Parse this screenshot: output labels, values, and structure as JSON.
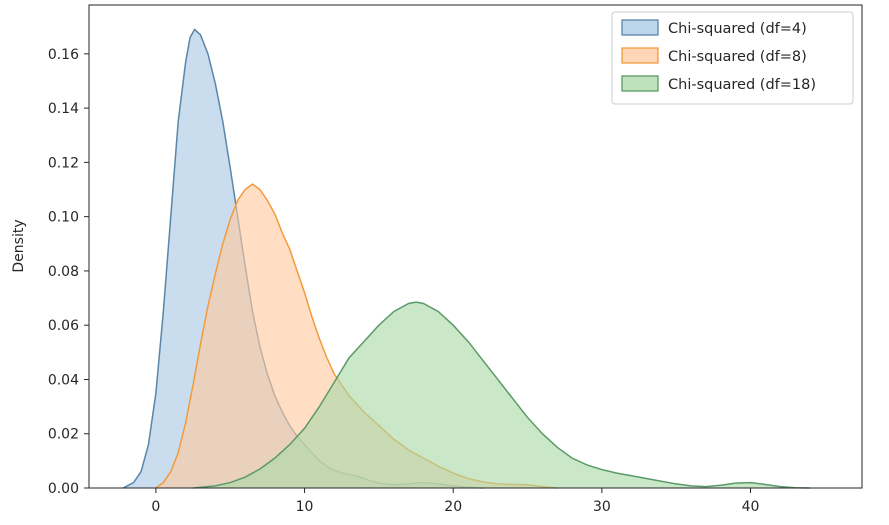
{
  "chart_data": {
    "type": "area",
    "title": "",
    "xlabel": "",
    "ylabel": "Density",
    "xlim": [
      -4.5,
      47.5
    ],
    "ylim": [
      0,
      0.178
    ],
    "x_ticks": [
      0,
      10,
      20,
      30,
      40
    ],
    "y_ticks": [
      0.0,
      0.02,
      0.04,
      0.06,
      0.08,
      0.1,
      0.12,
      0.14,
      0.16
    ],
    "grid": false,
    "legend_position": "top-right",
    "series": [
      {
        "name": "Chi-squared (df=4)",
        "fill": "#a8c8e4",
        "edge": "#5a86a8",
        "points": [
          [
            -2.2,
            0
          ],
          [
            -1.5,
            0.002
          ],
          [
            -1,
            0.006
          ],
          [
            -0.5,
            0.016
          ],
          [
            0,
            0.035
          ],
          [
            0.5,
            0.065
          ],
          [
            1,
            0.1
          ],
          [
            1.5,
            0.135
          ],
          [
            2,
            0.157
          ],
          [
            2.3,
            0.166
          ],
          [
            2.6,
            0.169
          ],
          [
            3,
            0.167
          ],
          [
            3.5,
            0.16
          ],
          [
            4,
            0.149
          ],
          [
            4.5,
            0.135
          ],
          [
            5,
            0.118
          ],
          [
            5.5,
            0.1
          ],
          [
            6,
            0.082
          ],
          [
            6.5,
            0.065
          ],
          [
            7,
            0.052
          ],
          [
            7.5,
            0.042
          ],
          [
            8,
            0.034
          ],
          [
            8.5,
            0.028
          ],
          [
            9,
            0.023
          ],
          [
            9.5,
            0.019
          ],
          [
            10,
            0.016
          ],
          [
            10.5,
            0.013
          ],
          [
            11,
            0.01
          ],
          [
            11.5,
            0.008
          ],
          [
            12,
            0.0065
          ],
          [
            12.5,
            0.0055
          ],
          [
            13,
            0.005
          ],
          [
            13.5,
            0.0045
          ],
          [
            14,
            0.0035
          ],
          [
            14.5,
            0.0025
          ],
          [
            15,
            0.0018
          ],
          [
            16,
            0.0012
          ],
          [
            17,
            0.0015
          ],
          [
            18,
            0.002
          ],
          [
            19,
            0.0015
          ],
          [
            20,
            0.0008
          ],
          [
            21,
            0.0003
          ],
          [
            22,
            0
          ]
        ]
      },
      {
        "name": "Chi-squared (df=8)",
        "fill": "#ffc9a0",
        "edge": "#f59a3c",
        "points": [
          [
            0,
            0
          ],
          [
            0.5,
            0.002
          ],
          [
            1,
            0.006
          ],
          [
            1.5,
            0.013
          ],
          [
            2,
            0.024
          ],
          [
            2.5,
            0.038
          ],
          [
            3,
            0.053
          ],
          [
            3.5,
            0.067
          ],
          [
            4,
            0.079
          ],
          [
            4.5,
            0.09
          ],
          [
            5,
            0.099
          ],
          [
            5.5,
            0.106
          ],
          [
            6,
            0.11
          ],
          [
            6.5,
            0.112
          ],
          [
            7,
            0.11
          ],
          [
            7.5,
            0.106
          ],
          [
            8,
            0.101
          ],
          [
            8.5,
            0.094
          ],
          [
            9,
            0.088
          ],
          [
            9.5,
            0.08
          ],
          [
            10,
            0.072
          ],
          [
            10.5,
            0.063
          ],
          [
            11,
            0.055
          ],
          [
            11.5,
            0.048
          ],
          [
            12,
            0.042
          ],
          [
            12.5,
            0.038
          ],
          [
            13,
            0.034
          ],
          [
            14,
            0.028
          ],
          [
            15,
            0.023
          ],
          [
            16,
            0.018
          ],
          [
            17,
            0.014
          ],
          [
            18,
            0.011
          ],
          [
            19,
            0.008
          ],
          [
            20,
            0.0055
          ],
          [
            21,
            0.0035
          ],
          [
            22,
            0.0022
          ],
          [
            23,
            0.0015
          ],
          [
            24,
            0.0013
          ],
          [
            25,
            0.0012
          ],
          [
            26,
            0.0005
          ],
          [
            27,
            0
          ]
        ]
      },
      {
        "name": "Chi-squared (df=18)",
        "fill": "#a9d8a6",
        "edge": "#5a9a6a",
        "points": [
          [
            2.5,
            0
          ],
          [
            4,
            0.0008
          ],
          [
            5,
            0.002
          ],
          [
            6,
            0.004
          ],
          [
            7,
            0.007
          ],
          [
            8,
            0.011
          ],
          [
            9,
            0.016
          ],
          [
            10,
            0.022
          ],
          [
            11,
            0.03
          ],
          [
            12,
            0.039
          ],
          [
            13,
            0.048
          ],
          [
            14,
            0.054
          ],
          [
            15,
            0.06
          ],
          [
            16,
            0.065
          ],
          [
            17,
            0.068
          ],
          [
            17.5,
            0.0685
          ],
          [
            18,
            0.068
          ],
          [
            19,
            0.065
          ],
          [
            20,
            0.06
          ],
          [
            21,
            0.054
          ],
          [
            22,
            0.047
          ],
          [
            23,
            0.04
          ],
          [
            24,
            0.033
          ],
          [
            25,
            0.026
          ],
          [
            26,
            0.02
          ],
          [
            27,
            0.015
          ],
          [
            28,
            0.011
          ],
          [
            29,
            0.0085
          ],
          [
            30,
            0.0068
          ],
          [
            31,
            0.0055
          ],
          [
            32,
            0.0045
          ],
          [
            33,
            0.0035
          ],
          [
            34,
            0.0025
          ],
          [
            35,
            0.0015
          ],
          [
            36,
            0.0008
          ],
          [
            37,
            0.0005
          ],
          [
            38,
            0.001
          ],
          [
            39,
            0.0018
          ],
          [
            40,
            0.002
          ],
          [
            41,
            0.0013
          ],
          [
            42,
            0.0005
          ],
          [
            43,
            0.0001
          ],
          [
            44,
            0
          ]
        ]
      }
    ]
  }
}
